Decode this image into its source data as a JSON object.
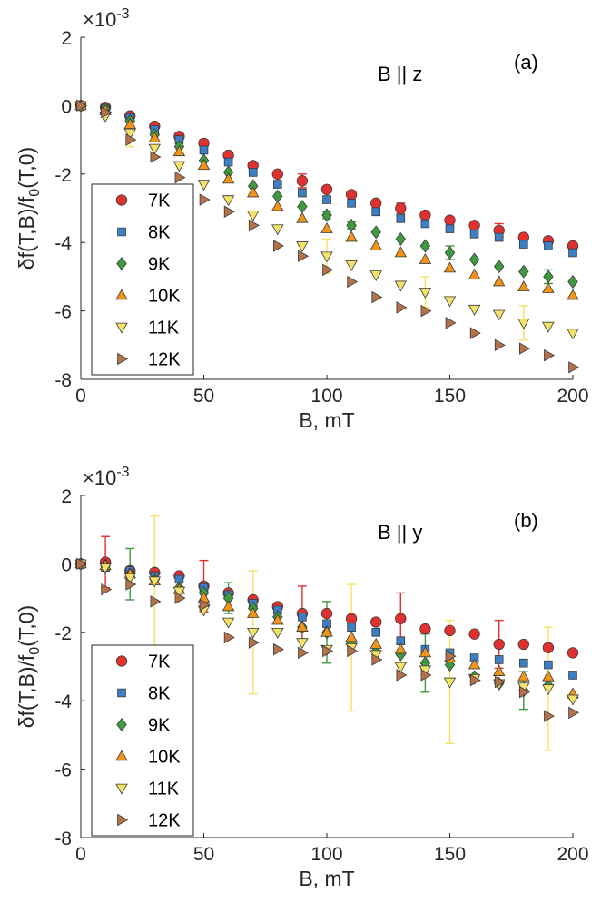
{
  "chart_data": [
    {
      "type": "scatter",
      "panel_label": "(a)",
      "annotation": "B || z",
      "xlabel": "B, mT",
      "ylabel": "δf(T,B)/f0(T,0)",
      "y_exponent": "×10-3",
      "xlim": [
        0,
        200
      ],
      "ylim": [
        -8,
        2
      ],
      "xticks": [
        "0",
        "50",
        "100",
        "150",
        "200"
      ],
      "yticks": [
        "2",
        "0",
        "-2",
        "-4",
        "-6",
        "-8"
      ],
      "legend_position": "bottom-left",
      "grid": false,
      "x": [
        0,
        10,
        20,
        30,
        40,
        50,
        60,
        70,
        80,
        90,
        100,
        110,
        120,
        130,
        140,
        150,
        160,
        170,
        180,
        190,
        200
      ],
      "series": [
        {
          "name": "7K",
          "marker": "circle",
          "color": "#e03030",
          "values": [
            0,
            -0.05,
            -0.3,
            -0.6,
            -0.9,
            -1.1,
            -1.45,
            -1.75,
            -2.0,
            -2.2,
            -2.45,
            -2.6,
            -2.85,
            -3.0,
            -3.2,
            -3.35,
            -3.5,
            -3.65,
            -3.85,
            -3.95,
            -4.1
          ],
          "errors": [
            0.05,
            0.05,
            0.05,
            0.05,
            0.05,
            0.1,
            0.05,
            0.05,
            0.05,
            0.2,
            0.05,
            0.05,
            0.05,
            0.15,
            0.05,
            0.05,
            0.05,
            0.2,
            0.05,
            0.05,
            0.05
          ]
        },
        {
          "name": "8K",
          "marker": "square",
          "color": "#3d7fc4",
          "values": [
            0,
            -0.1,
            -0.35,
            -0.7,
            -1.0,
            -1.3,
            -1.65,
            -1.95,
            -2.3,
            -2.55,
            -2.75,
            -2.85,
            -3.1,
            -3.3,
            -3.45,
            -3.6,
            -3.75,
            -3.85,
            -4.05,
            -4.1,
            -4.3
          ],
          "errors": [
            0.05,
            0.05,
            0.05,
            0.05,
            0.05,
            0.05,
            0.05,
            0.05,
            0.05,
            0.05,
            0.05,
            0.05,
            0.05,
            0.05,
            0.05,
            0.05,
            0.05,
            0.05,
            0.05,
            0.05,
            0.05
          ]
        },
        {
          "name": "9K",
          "marker": "diamond",
          "color": "#3f9a3f",
          "values": [
            0,
            -0.1,
            -0.45,
            -0.85,
            -1.2,
            -1.6,
            -1.95,
            -2.35,
            -2.65,
            -2.95,
            -3.2,
            -3.5,
            -3.7,
            -3.9,
            -4.1,
            -4.3,
            -4.5,
            -4.7,
            -4.85,
            -5.0,
            -5.15
          ],
          "errors": [
            0.05,
            0.05,
            0.05,
            0.05,
            0.05,
            0.05,
            0.05,
            0.05,
            0.05,
            0.05,
            0.1,
            0.1,
            0.05,
            0.05,
            0.05,
            0.2,
            0.05,
            0.05,
            0.05,
            0.2,
            0.05
          ]
        },
        {
          "name": "10K",
          "marker": "triangle-up",
          "color": "#f29418",
          "values": [
            0,
            -0.15,
            -0.55,
            -0.95,
            -1.35,
            -1.75,
            -2.15,
            -2.55,
            -2.95,
            -3.3,
            -3.6,
            -3.85,
            -4.1,
            -4.3,
            -4.5,
            -4.75,
            -4.95,
            -5.15,
            -5.3,
            -5.35,
            -5.55
          ],
          "errors": [
            0.05,
            0.05,
            0.05,
            0.05,
            0.05,
            0.05,
            0.05,
            0.05,
            0.05,
            0.05,
            0.05,
            0.05,
            0.05,
            0.05,
            0.05,
            0.05,
            0.05,
            0.05,
            0.05,
            0.05,
            0.05
          ]
        },
        {
          "name": "11K",
          "marker": "triangle-down",
          "color": "#f2e267",
          "values": [
            0,
            -0.3,
            -0.8,
            -1.25,
            -1.75,
            -2.3,
            -2.75,
            -3.2,
            -3.6,
            -4.1,
            -4.4,
            -4.65,
            -4.95,
            -5.25,
            -5.45,
            -5.7,
            -5.95,
            -6.1,
            -6.35,
            -6.45,
            -6.65
          ],
          "errors": [
            0.05,
            0.05,
            0.4,
            0.05,
            0.05,
            0.05,
            0.05,
            0.05,
            0.05,
            0.05,
            0.5,
            0.05,
            0.05,
            0.05,
            0.45,
            0.05,
            0.05,
            0.05,
            0.5,
            0.05,
            0.05
          ]
        },
        {
          "name": "12K",
          "marker": "triangle-right",
          "color": "#b5714a",
          "values": [
            0,
            -0.2,
            -1.0,
            -1.5,
            -2.1,
            -2.75,
            -3.1,
            -3.5,
            -4.1,
            -4.4,
            -4.8,
            -5.15,
            -5.6,
            -5.9,
            -6.0,
            -6.35,
            -6.65,
            -7.0,
            -7.1,
            -7.3,
            -7.65
          ],
          "errors": [
            0.05,
            0.05,
            0.05,
            0.05,
            0.05,
            0.05,
            0.05,
            0.05,
            0.05,
            0.05,
            0.05,
            0.05,
            0.05,
            0.05,
            0.05,
            0.05,
            0.05,
            0.05,
            0.05,
            0.05,
            0.05
          ]
        }
      ]
    },
    {
      "type": "scatter",
      "panel_label": "(b)",
      "annotation": "B || y",
      "xlabel": "B, mT",
      "ylabel": "δf(T,B)/f0(T,0)",
      "y_exponent": "×10-3",
      "xlim": [
        0,
        200
      ],
      "ylim": [
        -8,
        2
      ],
      "xticks": [
        "0",
        "50",
        "100",
        "150",
        "200"
      ],
      "yticks": [
        "2",
        "0",
        "-2",
        "-4",
        "-6",
        "-8"
      ],
      "legend_position": "bottom-left",
      "grid": false,
      "x": [
        0,
        10,
        20,
        30,
        40,
        50,
        60,
        70,
        80,
        90,
        100,
        110,
        120,
        130,
        140,
        150,
        160,
        170,
        180,
        190,
        200
      ],
      "series": [
        {
          "name": "7K",
          "marker": "circle",
          "color": "#e03030",
          "values": [
            0,
            0.05,
            -0.2,
            -0.25,
            -0.35,
            -0.65,
            -0.85,
            -1.05,
            -1.25,
            -1.45,
            -1.45,
            -1.6,
            -1.7,
            -1.6,
            -1.9,
            -1.95,
            -2.05,
            -2.35,
            -2.35,
            -2.45,
            -2.6
          ],
          "errors": [
            0.05,
            0.75,
            0.05,
            0.05,
            0.05,
            0.75,
            0.05,
            0.05,
            0.05,
            0.8,
            0.05,
            0.05,
            0.05,
            0.75,
            0.05,
            0.05,
            0.05,
            0.7,
            0.05,
            0.05,
            0.05
          ]
        },
        {
          "name": "8K",
          "marker": "square",
          "color": "#3d7fc4",
          "values": [
            0,
            -0.1,
            -0.2,
            -0.35,
            -0.45,
            -0.7,
            -0.9,
            -1.15,
            -1.35,
            -1.55,
            -1.75,
            -1.85,
            -2.0,
            -2.25,
            -2.5,
            -2.6,
            -2.75,
            -2.8,
            -2.9,
            -2.95,
            -3.25
          ],
          "errors": [
            0.05,
            0.05,
            0.05,
            0.05,
            0.05,
            0.05,
            0.05,
            0.05,
            0.05,
            0.05,
            0.05,
            0.05,
            0.05,
            0.05,
            0.05,
            0.05,
            0.05,
            0.05,
            0.05,
            0.05,
            0.05
          ]
        },
        {
          "name": "9K",
          "marker": "diamond",
          "color": "#3f9a3f",
          "values": [
            0,
            -0.05,
            -0.3,
            -0.45,
            -0.7,
            -0.85,
            -1.0,
            -1.3,
            -1.55,
            -1.85,
            -2.0,
            -2.3,
            -2.55,
            -2.65,
            -2.9,
            -2.95,
            -3.3,
            -3.5,
            -3.7,
            -3.55,
            -3.9
          ],
          "errors": [
            0.05,
            0.05,
            0.75,
            0.05,
            0.05,
            0.05,
            0.45,
            0.05,
            0.05,
            0.05,
            0.9,
            0.05,
            0.05,
            0.05,
            0.85,
            0.05,
            0.05,
            0.05,
            0.55,
            0.05,
            0.05
          ]
        },
        {
          "name": "10K",
          "marker": "triangle-up",
          "color": "#f29418",
          "values": [
            0,
            -0.05,
            -0.3,
            -0.5,
            -0.75,
            -1.0,
            -1.25,
            -1.45,
            -1.65,
            -1.85,
            -2.0,
            -2.15,
            -2.35,
            -2.5,
            -2.6,
            -2.75,
            -2.95,
            -3.15,
            -3.3,
            -3.3,
            -3.8
          ],
          "errors": [
            0.05,
            0.05,
            0.05,
            0.05,
            0.05,
            0.05,
            0.05,
            0.05,
            0.05,
            0.05,
            0.05,
            0.05,
            0.05,
            0.05,
            0.05,
            0.05,
            0.05,
            0.05,
            0.05,
            0.05,
            0.05
          ]
        },
        {
          "name": "11K",
          "marker": "triangle-down",
          "color": "#f2e267",
          "values": [
            0,
            -0.1,
            -0.4,
            -0.5,
            -0.8,
            -1.35,
            -1.7,
            -2.0,
            -2.0,
            -2.3,
            -2.5,
            -2.45,
            -2.65,
            -3.0,
            -3.1,
            -3.45,
            -3.35,
            -3.5,
            -3.6,
            -3.65,
            -3.95
          ],
          "errors": [
            0.05,
            0.05,
            0.05,
            1.9,
            0.05,
            0.05,
            0.05,
            1.8,
            0.05,
            0.05,
            0.05,
            1.85,
            0.05,
            0.05,
            0.05,
            1.8,
            0.05,
            0.05,
            0.05,
            1.8,
            0.05
          ]
        },
        {
          "name": "12K",
          "marker": "triangle-right",
          "color": "#b5714a",
          "values": [
            0,
            -0.75,
            -0.6,
            -1.1,
            -1.0,
            -1.2,
            -2.15,
            -2.3,
            -2.5,
            -2.6,
            -2.55,
            -2.55,
            -2.8,
            -3.25,
            -3.25,
            -2.7,
            -3.4,
            -3.45,
            -3.75,
            -4.45,
            -4.35
          ],
          "errors": [
            0.05,
            0.05,
            0.05,
            0.05,
            0.05,
            0.05,
            0.05,
            0.05,
            0.05,
            0.05,
            0.05,
            0.05,
            0.05,
            0.05,
            0.05,
            0.05,
            0.05,
            0.05,
            0.05,
            0.05,
            0.05
          ]
        }
      ]
    }
  ]
}
